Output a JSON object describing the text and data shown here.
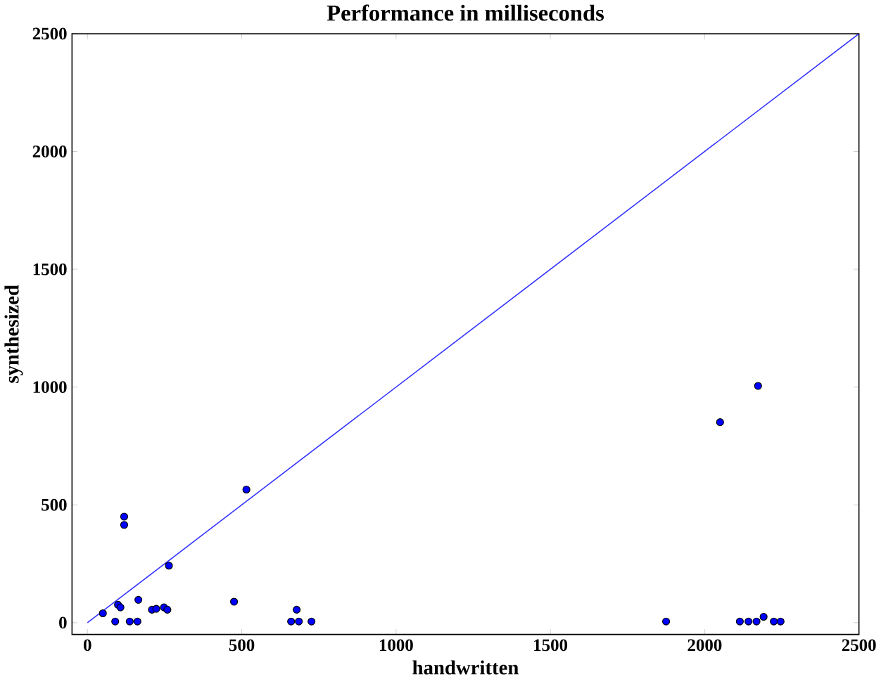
{
  "chart_data": {
    "type": "scatter",
    "title": "Performance in milliseconds",
    "xlabel": "handwritten",
    "ylabel": "synthesized",
    "xlim": [
      -50,
      2500
    ],
    "ylim": [
      -50,
      2500
    ],
    "xticks": [
      0,
      500,
      1000,
      1500,
      2000,
      2500
    ],
    "yticks": [
      0,
      500,
      1000,
      1500,
      2000,
      2500
    ],
    "grid": false,
    "series": [
      {
        "marker": "circle",
        "color": "#0000ff",
        "x": [
          50,
          90,
          99,
          107,
          119,
          119,
          137,
          162,
          165,
          264,
          209,
          223,
          248,
          259,
          475,
          515,
          660,
          685,
          678,
          726,
          1875,
          2114,
          2142,
          2168,
          2191,
          2224,
          2246,
          2050,
          2173
        ],
        "values": [
          40,
          5,
          76,
          65,
          450,
          415,
          5,
          5,
          97,
          242,
          55,
          59,
          65,
          55,
          89,
          565,
          5,
          5,
          55,
          5,
          5,
          5,
          5,
          5,
          25,
          5,
          5,
          851,
          1005
        ]
      },
      {
        "type": "line",
        "marker": "none",
        "color": "#3030ff",
        "x": [
          0,
          2500
        ],
        "values": [
          0,
          2500
        ]
      }
    ]
  }
}
